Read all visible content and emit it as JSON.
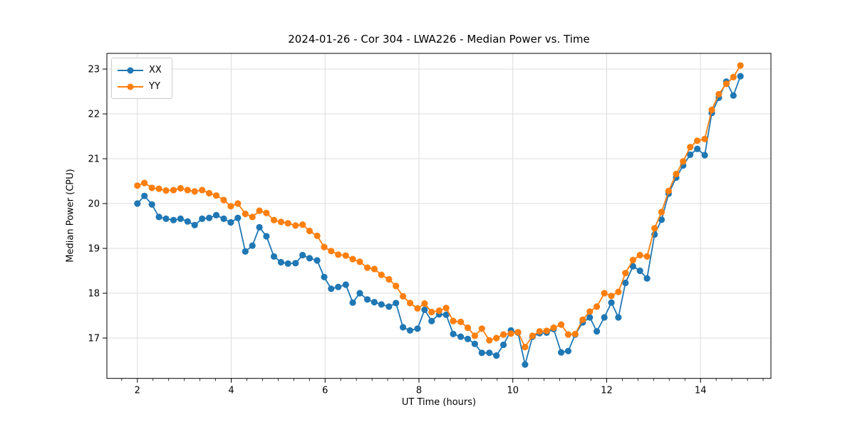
{
  "chart_data": {
    "type": "line",
    "title": "2024-01-26 - Cor 304 - LWA226 - Median Power vs. Time",
    "xlabel": "UT Time (hours)",
    "ylabel": "Median Power (CPU)",
    "xlim": [
      1.35,
      15.5
    ],
    "ylim": [
      16.1,
      23.35
    ],
    "x_ticks": [
      2,
      4,
      6,
      8,
      10,
      12,
      14
    ],
    "y_ticks": [
      17,
      18,
      19,
      20,
      21,
      22,
      23
    ],
    "x_minor_tick_interval": 0.3333,
    "grid": true,
    "grid_color": "#dcdcdc",
    "spine_color": "#000000",
    "legend_position": "upper left",
    "marker": "circle",
    "x": [
      2.0,
      2.15,
      2.31,
      2.46,
      2.61,
      2.77,
      2.92,
      3.07,
      3.22,
      3.38,
      3.53,
      3.68,
      3.84,
      3.99,
      4.14,
      4.3,
      4.45,
      4.6,
      4.75,
      4.91,
      5.06,
      5.21,
      5.37,
      5.52,
      5.67,
      5.83,
      5.98,
      6.13,
      6.28,
      6.44,
      6.59,
      6.74,
      6.9,
      7.05,
      7.2,
      7.36,
      7.51,
      7.66,
      7.81,
      7.97,
      8.12,
      8.27,
      8.43,
      8.58,
      8.73,
      8.89,
      9.04,
      9.19,
      9.34,
      9.5,
      9.65,
      9.8,
      9.96,
      10.11,
      10.26,
      10.42,
      10.57,
      10.72,
      10.87,
      11.03,
      11.18,
      11.33,
      11.49,
      11.64,
      11.79,
      11.95,
      12.1,
      12.25,
      12.4,
      12.56,
      12.71,
      12.86,
      13.02,
      13.17,
      13.32,
      13.48,
      13.63,
      13.78,
      13.93,
      14.09,
      14.24,
      14.39,
      14.55,
      14.7,
      14.85
    ],
    "series": [
      {
        "name": "XX",
        "color": "#1f77b4",
        "values": [
          20.0,
          20.17,
          19.98,
          19.7,
          19.66,
          19.63,
          19.66,
          19.6,
          19.52,
          19.66,
          19.68,
          19.74,
          19.66,
          19.58,
          19.68,
          18.93,
          19.06,
          19.47,
          19.27,
          18.82,
          18.69,
          18.66,
          18.67,
          18.85,
          18.78,
          18.73,
          18.36,
          18.1,
          18.14,
          18.19,
          17.79,
          18.0,
          17.86,
          17.8,
          17.75,
          17.7,
          17.78,
          17.24,
          17.17,
          17.21,
          17.63,
          17.38,
          17.53,
          17.52,
          17.09,
          17.03,
          16.98,
          16.87,
          16.67,
          16.67,
          16.61,
          16.85,
          17.17,
          17.12,
          16.41,
          17.03,
          17.11,
          17.12,
          17.2,
          16.68,
          16.71,
          17.08,
          17.35,
          17.46,
          17.15,
          17.46,
          17.79,
          17.46,
          18.23,
          18.6,
          18.5,
          18.33,
          19.31,
          19.64,
          20.22,
          20.58,
          20.85,
          21.09,
          21.22,
          21.08,
          22.02,
          22.36,
          22.72,
          22.41,
          22.84
        ]
      },
      {
        "name": "YY",
        "color": "#ff7f0e",
        "values": [
          20.4,
          20.46,
          20.35,
          20.33,
          20.29,
          20.3,
          20.34,
          20.3,
          20.27,
          20.3,
          20.23,
          20.18,
          20.08,
          19.94,
          20.0,
          19.77,
          19.7,
          19.84,
          19.79,
          19.63,
          19.59,
          19.56,
          19.51,
          19.53,
          19.39,
          19.28,
          19.03,
          18.94,
          18.86,
          18.84,
          18.76,
          18.7,
          18.57,
          18.54,
          18.41,
          18.31,
          18.16,
          17.93,
          17.78,
          17.66,
          17.77,
          17.58,
          17.61,
          17.67,
          17.38,
          17.36,
          17.23,
          17.05,
          17.21,
          16.95,
          17.0,
          17.08,
          17.1,
          17.13,
          16.8,
          17.05,
          17.15,
          17.16,
          17.23,
          17.3,
          17.08,
          17.09,
          17.41,
          17.59,
          17.7,
          18.0,
          17.94,
          18.03,
          18.45,
          18.74,
          18.85,
          18.82,
          19.45,
          19.81,
          20.28,
          20.66,
          20.94,
          21.26,
          21.4,
          21.44,
          22.09,
          22.44,
          22.67,
          22.82,
          23.08
        ]
      }
    ]
  }
}
